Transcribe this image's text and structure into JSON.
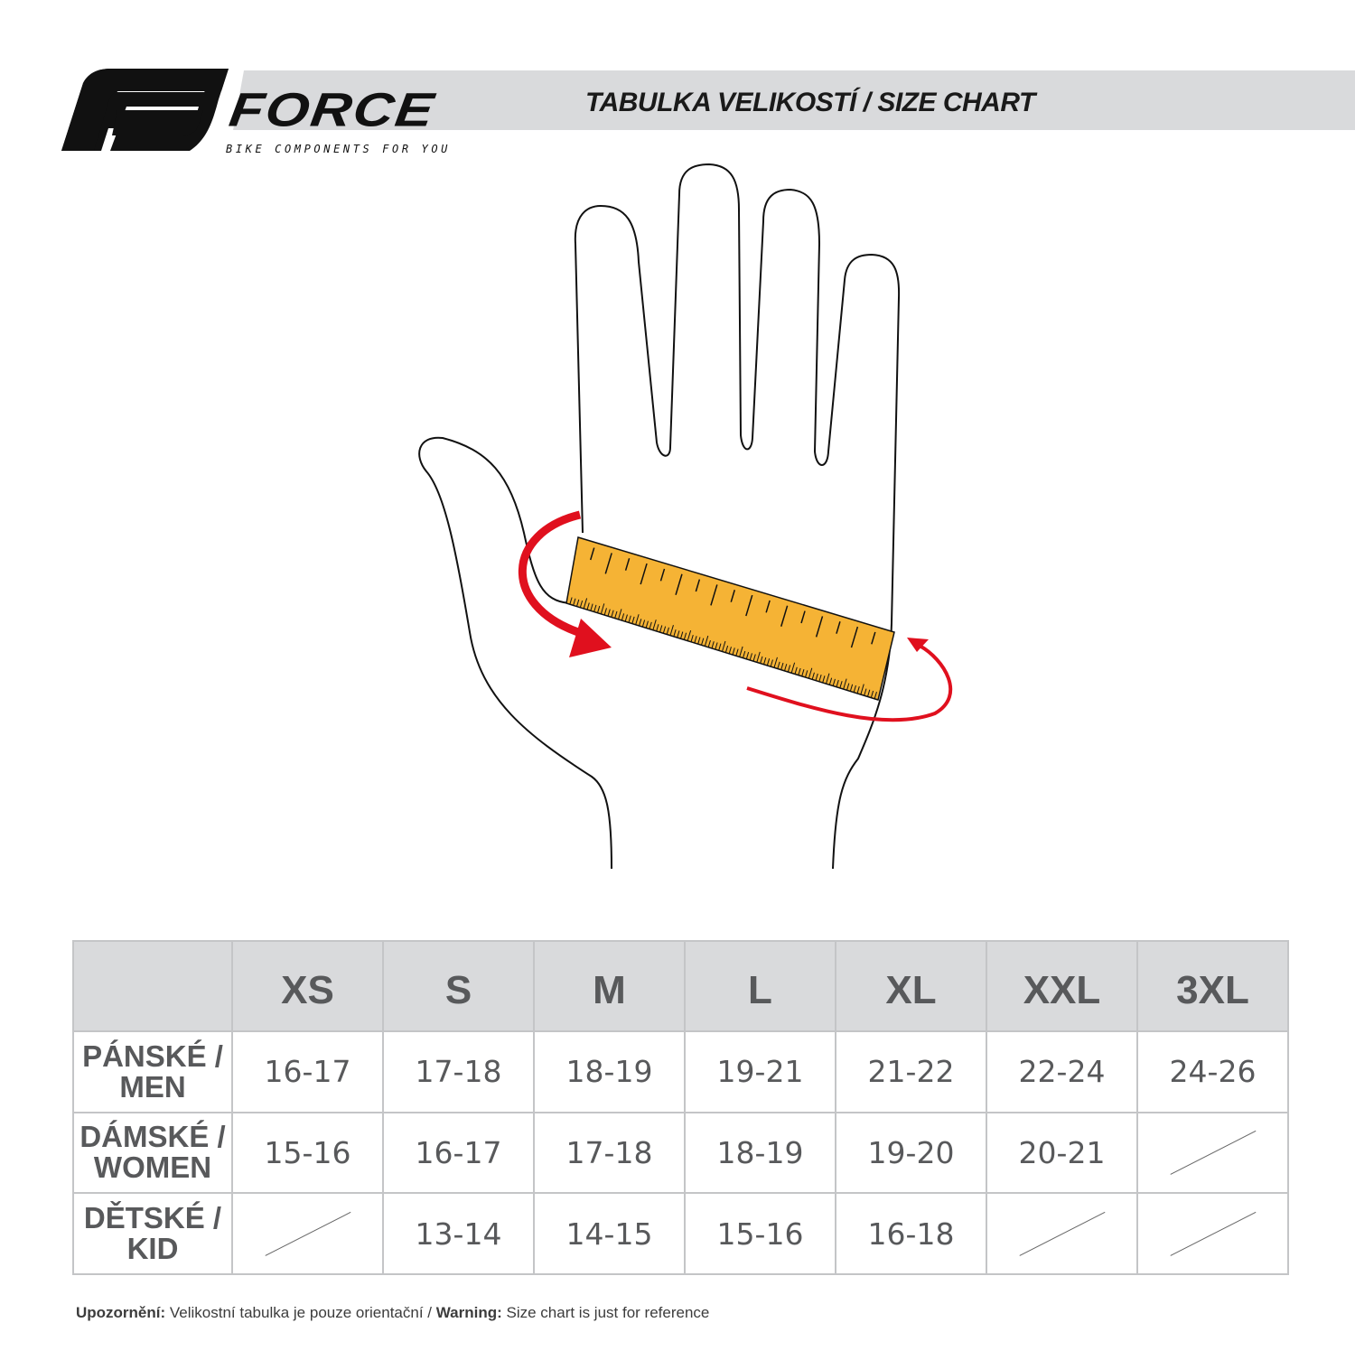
{
  "header": {
    "brand": "FORCE",
    "tagline": "BIKE COMPONENTS FOR YOU",
    "title": "TABULKA VELIKOSTÍ / SIZE CHART"
  },
  "colors": {
    "ruler": "#f5b335",
    "arrow": "#e0101e",
    "header_bg": "#d9dadc",
    "text": "#58595b"
  },
  "table": {
    "columns": [
      "XS",
      "S",
      "M",
      "L",
      "XL",
      "XXL",
      "3XL"
    ],
    "rows": [
      {
        "label_line1": "PÁNSKÉ /",
        "label_line2": "MEN",
        "values": [
          "16-17",
          "17-18",
          "18-19",
          "19-21",
          "21-22",
          "22-24",
          "24-26"
        ]
      },
      {
        "label_line1": "DÁMSKÉ /",
        "label_line2": "WOMEN",
        "values": [
          "15-16",
          "16-17",
          "17-18",
          "18-19",
          "19-20",
          "20-21",
          null
        ]
      },
      {
        "label_line1": "DĚTSKÉ /",
        "label_line2": "KID",
        "values": [
          null,
          "13-14",
          "14-15",
          "15-16",
          "16-18",
          null,
          null
        ]
      }
    ]
  },
  "note": {
    "label_cz": "Upozornění:",
    "text_cz": " Velikostní tabulka je pouze orientační / ",
    "label_en": "Warning:",
    "text_en": " Size chart is just for reference"
  }
}
